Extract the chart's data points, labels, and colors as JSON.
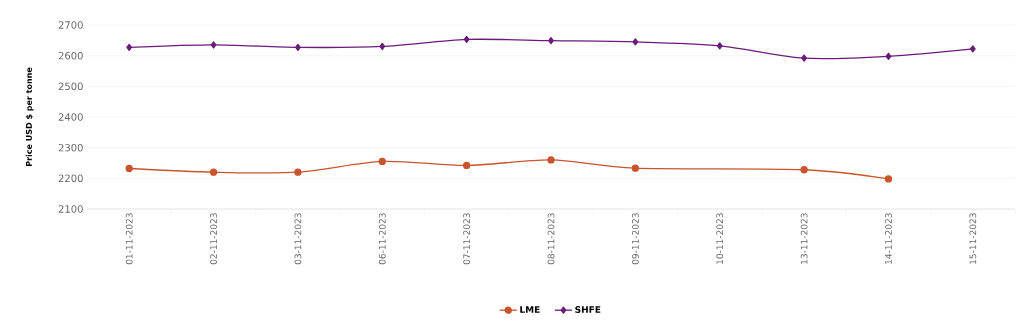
{
  "chart_data": {
    "type": "line",
    "ylabel": "Price USD $ per tonne",
    "categories": [
      "01-11-2023",
      "02-11-2023",
      "03-11-2023",
      "06-11-2023",
      "07-11-2023",
      "08-11-2023",
      "09-11-2023",
      "10-11-2023",
      "13-11-2023",
      "14-11-2023",
      "15-11-2023"
    ],
    "series": [
      {
        "name": "LME",
        "color": "#c8532c",
        "marker": "circle",
        "values": [
          2232,
          2220,
          2220,
          2255,
          2242,
          2260,
          2233,
          null,
          2228,
          2198,
          null
        ]
      },
      {
        "name": "SHFE",
        "color": "#6a1b7a",
        "marker": "diamond",
        "values": [
          2627,
          2635,
          2627,
          2630,
          2653,
          2649,
          2645,
          2632,
          2592,
          2598,
          2622
        ]
      }
    ],
    "ylim": [
      2100,
      2700
    ],
    "yticks": [
      2100,
      2200,
      2300,
      2400,
      2500,
      2600,
      2700
    ],
    "grid": "y",
    "legend": "bottom"
  }
}
